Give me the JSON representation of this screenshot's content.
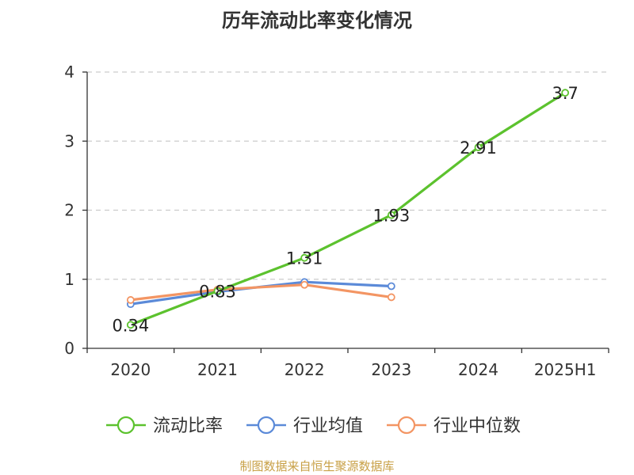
{
  "chart_data": {
    "type": "line",
    "title": "历年流动比率变化情况",
    "categories": [
      "2020",
      "2021",
      "2022",
      "2023",
      "2024",
      "2025H1"
    ],
    "series": [
      {
        "name": "流动比率",
        "color": "#5cc22e",
        "values": [
          0.34,
          0.83,
          1.31,
          1.93,
          2.91,
          3.7
        ],
        "labels": [
          "0.34",
          "0.83",
          "1.31",
          "1.93",
          "2.91",
          "3.7"
        ]
      },
      {
        "name": "行业均值",
        "color": "#5b8ad8",
        "values": [
          0.64,
          0.82,
          0.96,
          0.9,
          null,
          null
        ]
      },
      {
        "name": "行业中位数",
        "color": "#f39563",
        "values": [
          0.7,
          0.85,
          0.92,
          0.74,
          null,
          null
        ]
      }
    ],
    "ylim": [
      0,
      4
    ],
    "yticks": [
      0,
      1,
      2,
      3,
      4
    ],
    "grid": true,
    "legend": "bottom"
  },
  "source": "制图数据来自恒生聚源数据库"
}
